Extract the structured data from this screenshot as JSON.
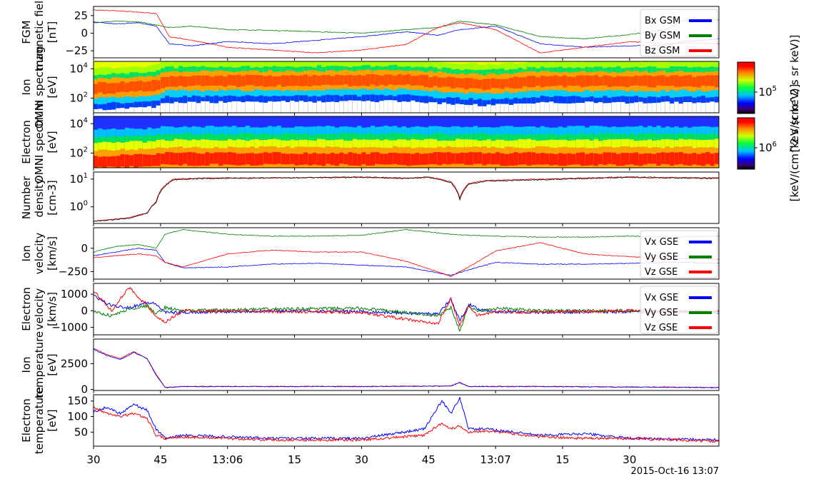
{
  "chart_data": {
    "type": "line",
    "time_axis": {
      "start": "2015-10-16 13:05:30",
      "end": "2015-10-16 13:07:50",
      "tick_labels": [
        "30",
        "45",
        "13:06",
        "15",
        "30",
        "45",
        "13:07",
        "15",
        "30"
      ],
      "tick_times": [
        "13:05:30",
        "13:05:45",
        "13:06:00",
        "13:06:15",
        "13:06:30",
        "13:06:45",
        "13:07:00",
        "13:07:15",
        "13:07:30"
      ],
      "date_label": "2015-Oct-16 13:07"
    },
    "panels": [
      {
        "id": "fgm",
        "kind": "line",
        "ylabel": [
          "FGM",
          "magnetic field",
          "[nT]"
        ],
        "yticks": [
          "25",
          "0",
          "−25"
        ],
        "ytick_values": [
          25,
          0,
          -25
        ],
        "ylim": [
          -35,
          38
        ],
        "legend": [
          "Bx GSM",
          "By GSM",
          "Bz GSM"
        ],
        "series": [
          {
            "name": "Bx GSM",
            "color": "#0000ff",
            "t": [
              0,
              5,
              10,
              14,
              17,
              22,
              30,
              40,
              50,
              60,
              70,
              77,
              82,
              90,
              100,
              110,
              120,
              128,
              132,
              140
            ],
            "values": [
              16,
              13,
              15,
              10,
              -15,
              -18,
              -12,
              -15,
              -10,
              -5,
              2,
              -3,
              5,
              10,
              -15,
              -20,
              -18,
              -17,
              -12,
              -8
            ]
          },
          {
            "name": "By GSM",
            "color": "#008000",
            "t": [
              0,
              5,
              10,
              14,
              17,
              22,
              30,
              40,
              50,
              60,
              70,
              77,
              82,
              90,
              100,
              110,
              120,
              128,
              132,
              140
            ],
            "values": [
              15,
              17,
              16,
              12,
              8,
              10,
              5,
              4,
              2,
              0,
              5,
              8,
              17,
              12,
              -5,
              -8,
              -2,
              5,
              18,
              19
            ]
          },
          {
            "name": "Bz GSM",
            "color": "#ff0000",
            "t": [
              0,
              5,
              10,
              14,
              17,
              22,
              30,
              40,
              50,
              60,
              70,
              77,
              82,
              90,
              100,
              110,
              120,
              128,
              132,
              140
            ],
            "values": [
              33,
              32,
              30,
              28,
              -5,
              -10,
              -20,
              -24,
              -28,
              -24,
              -16,
              8,
              15,
              5,
              -28,
              -20,
              -12,
              -15,
              -14,
              -15
            ]
          }
        ]
      },
      {
        "id": "ion_spec",
        "kind": "spectrogram",
        "ylabel": [
          "Ion",
          "OMNI spectrum",
          "[eV]"
        ],
        "yticks": [
          "10^4",
          "10^2"
        ],
        "ytick_values": [
          10000,
          100
        ],
        "colorbar_tick": "10^5",
        "colorbar_label": "[keV/(cm^2 s sr keV)]",
        "peak_band": [
          {
            "t": 0,
            "log_e": 2.8
          },
          {
            "t": 14,
            "log_e": 3.0
          },
          {
            "t": 16,
            "log_e": 3.3
          },
          {
            "t": 70,
            "log_e": 3.4
          },
          {
            "t": 80,
            "log_e": 3.2
          },
          {
            "t": 88,
            "log_e": 3.1
          },
          {
            "t": 100,
            "log_e": 3.3
          },
          {
            "t": 140,
            "log_e": 3.3
          }
        ]
      },
      {
        "id": "ele_spec",
        "kind": "spectrogram",
        "ylabel": [
          "Electron",
          "OMNI spectrum",
          "[eV]"
        ],
        "yticks": [
          "10^4",
          "10^2"
        ],
        "ytick_values": [
          10000,
          100
        ],
        "colorbar_tick": "10^6",
        "colorbar_label": "[keV/(cm^2 s sr keV)]",
        "peak_band": [
          {
            "t": 0,
            "log_e": 1.5
          },
          {
            "t": 14,
            "log_e": 1.6
          },
          {
            "t": 16,
            "log_e": 1.7
          },
          {
            "t": 140,
            "log_e": 1.7
          }
        ]
      },
      {
        "id": "density",
        "kind": "line",
        "log": true,
        "ylabel": [
          "Number",
          "density",
          "[cm-3]"
        ],
        "yticks": [
          "10^1",
          "10^0"
        ],
        "ytick_values": [
          10,
          1
        ],
        "ylim": [
          0.25,
          18
        ],
        "series": [
          {
            "name": "",
            "color": "#ff0000",
            "t": [
              0,
              4,
              8,
              12,
              14,
              16,
              18,
              25,
              40,
              60,
              70,
              75,
              80,
              82,
              84,
              88,
              100,
              120,
              140
            ],
            "values": [
              0.3,
              0.35,
              0.4,
              0.6,
              1.5,
              6,
              10,
              11,
              11,
              12,
              11,
              12,
              8,
              2,
              7,
              9,
              10,
              12,
              11
            ]
          },
          {
            "name": "",
            "color": "#000000",
            "t": [
              0,
              4,
              8,
              12,
              14,
              16,
              18,
              25,
              40,
              60,
              70,
              75,
              80,
              82,
              84,
              88,
              100,
              120,
              140
            ],
            "values": [
              0.3,
              0.34,
              0.38,
              0.58,
              1.4,
              5.5,
              9.5,
              10.5,
              11,
              11.5,
              10.5,
              11.5,
              7.5,
              1.8,
              6.5,
              8.5,
              9.5,
              11.5,
              10.5
            ]
          }
        ]
      },
      {
        "id": "ion_vel",
        "kind": "line",
        "ylabel": [
          "Ion",
          "velocity",
          "[km/s]"
        ],
        "yticks": [
          "0",
          "−250"
        ],
        "ytick_values": [
          0,
          -250
        ],
        "ylim": [
          -330,
          220
        ],
        "legend": [
          "Vx GSE",
          "Vy GSE",
          "Vz GSE"
        ],
        "series": [
          {
            "name": "Vx GSE",
            "color": "#0000ff",
            "t": [
              0,
              5,
              10,
              14,
              16,
              20,
              30,
              40,
              50,
              60,
              70,
              80,
              84,
              90,
              100,
              110,
              120,
              130,
              140
            ],
            "values": [
              -80,
              -40,
              0,
              -20,
              -150,
              -210,
              -200,
              -170,
              -160,
              -180,
              -200,
              -290,
              -230,
              -150,
              -170,
              -170,
              -160,
              -150,
              -160
            ]
          },
          {
            "name": "Vy GSE",
            "color": "#008000",
            "t": [
              0,
              5,
              10,
              14,
              16,
              20,
              30,
              40,
              50,
              60,
              70,
              80,
              84,
              90,
              100,
              110,
              120,
              130,
              140
            ],
            "values": [
              -40,
              20,
              40,
              0,
              150,
              200,
              150,
              130,
              130,
              140,
              200,
              150,
              140,
              130,
              120,
              120,
              130,
              120,
              130
            ]
          },
          {
            "name": "Vz GSE",
            "color": "#ff0000",
            "t": [
              0,
              5,
              10,
              14,
              16,
              20,
              30,
              40,
              50,
              60,
              70,
              80,
              84,
              90,
              100,
              110,
              120,
              130,
              140
            ],
            "values": [
              -100,
              -80,
              -60,
              -80,
              -150,
              -200,
              -60,
              -20,
              -40,
              -40,
              -140,
              -300,
              -200,
              -30,
              60,
              -60,
              -90,
              -110,
              -120
            ]
          }
        ]
      },
      {
        "id": "ele_vel",
        "kind": "line",
        "ylabel": [
          "Electron",
          "velocity",
          "[km/s]"
        ],
        "yticks": [
          "1000",
          "0",
          "−1000"
        ],
        "ytick_values": [
          1000,
          0,
          -1000
        ],
        "ylim": [
          -1450,
          1650
        ],
        "legend": [
          "Vx GSE",
          "Vy GSE",
          "Vz GSE"
        ],
        "series": [
          {
            "name": "Vx GSE",
            "color": "#0000ff",
            "t": [
              0,
              4,
              8,
              12,
              14,
              16,
              20,
              40,
              60,
              77,
              80,
              82,
              84,
              86,
              90,
              100,
              120,
              140
            ],
            "values": [
              900,
              300,
              200,
              500,
              400,
              -100,
              -100,
              0,
              -50,
              -200,
              700,
              -600,
              400,
              100,
              -50,
              -100,
              -50,
              -100
            ]
          },
          {
            "name": "Vy GSE",
            "color": "#008000",
            "t": [
              0,
              4,
              8,
              12,
              14,
              16,
              20,
              40,
              60,
              77,
              80,
              82,
              84,
              86,
              90,
              100,
              120,
              140
            ],
            "values": [
              -50,
              -300,
              100,
              300,
              -200,
              200,
              0,
              100,
              150,
              -300,
              200,
              -1200,
              300,
              0,
              150,
              0,
              0,
              -50
            ]
          },
          {
            "name": "Vz GSE",
            "color": "#ff0000",
            "t": [
              0,
              4,
              8,
              12,
              14,
              16,
              20,
              40,
              60,
              77,
              80,
              82,
              84,
              86,
              90,
              100,
              120,
              140
            ],
            "values": [
              1200,
              0,
              1400,
              300,
              -400,
              -700,
              0,
              -50,
              -100,
              -800,
              700,
              -900,
              300,
              -300,
              -50,
              -100,
              0,
              -50
            ]
          }
        ]
      },
      {
        "id": "ion_temp",
        "kind": "line",
        "ylabel": [
          "Ion",
          "temperature",
          "[eV]"
        ],
        "yticks": [
          "2500",
          "0"
        ],
        "ytick_values": [
          2500,
          0
        ],
        "ylim": [
          -100,
          4900
        ],
        "series": [
          {
            "name": "",
            "color": "#ff0000",
            "t": [
              0,
              3,
              6,
              9,
              12,
              14,
              16,
              20,
              40,
              60,
              80,
              82,
              84,
              100,
              120,
              140
            ],
            "values": [
              4000,
              3400,
              3000,
              3700,
              3000,
              1500,
              200,
              300,
              300,
              300,
              350,
              700,
              300,
              300,
              250,
              200
            ]
          },
          {
            "name": "",
            "color": "#0000ff",
            "t": [
              0,
              3,
              6,
              9,
              12,
              14,
              16,
              20,
              40,
              60,
              80,
              82,
              84,
              100,
              120,
              140
            ],
            "values": [
              3900,
              3300,
              2900,
              3600,
              3000,
              1400,
              180,
              280,
              280,
              280,
              330,
              650,
              280,
              280,
              230,
              180
            ]
          }
        ]
      },
      {
        "id": "ele_temp",
        "kind": "line",
        "ylabel": [
          "Electron",
          "temperature",
          "[eV]"
        ],
        "yticks": [
          "150",
          "100",
          "50"
        ],
        "ytick_values": [
          150,
          100,
          50
        ],
        "ylim": [
          5,
          170
        ],
        "series": [
          {
            "name": "",
            "color": "#0000ff",
            "t": [
              0,
              3,
              6,
              9,
              12,
              14,
              16,
              20,
              40,
              60,
              74,
              78,
              80,
              82,
              84,
              88,
              100,
              110,
              120,
              140
            ],
            "values": [
              115,
              130,
              110,
              140,
              120,
              60,
              30,
              40,
              30,
              30,
              60,
              150,
              110,
              160,
              60,
              60,
              40,
              45,
              30,
              25
            ]
          },
          {
            "name": "",
            "color": "#ff0000",
            "t": [
              0,
              3,
              6,
              9,
              12,
              14,
              16,
              20,
              40,
              60,
              74,
              78,
              80,
              82,
              84,
              88,
              100,
              110,
              120,
              140
            ],
            "values": [
              130,
              110,
              100,
              110,
              95,
              40,
              30,
              35,
              25,
              25,
              40,
              80,
              60,
              70,
              50,
              55,
              35,
              30,
              30,
              20
            ]
          }
        ]
      }
    ]
  }
}
